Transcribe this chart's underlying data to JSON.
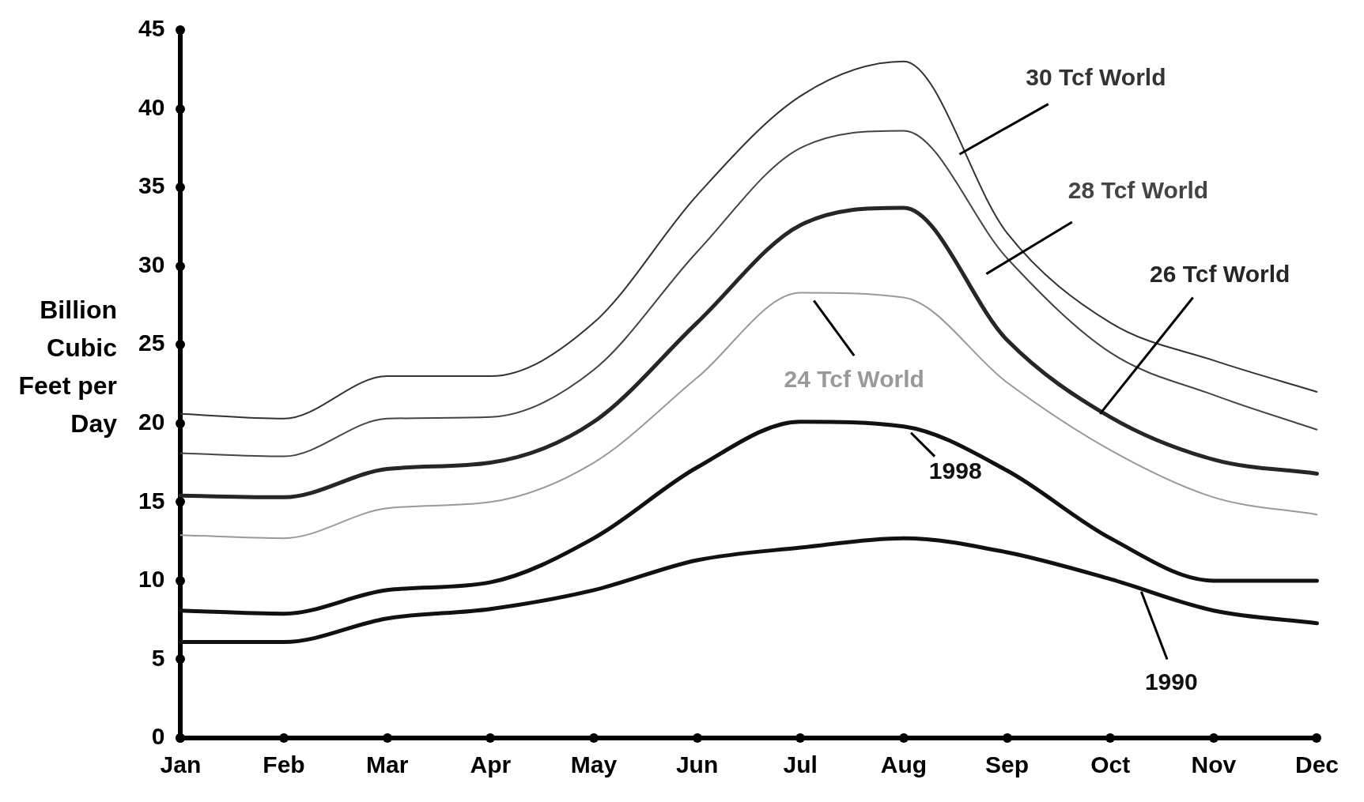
{
  "chart_data": {
    "type": "line",
    "ylabel": "Billion Cubic Feet per Day",
    "categories": [
      "Jan",
      "Feb",
      "Mar",
      "Apr",
      "May",
      "Jun",
      "Jul",
      "Aug",
      "Sep",
      "Oct",
      "Nov",
      "Dec"
    ],
    "series": [
      {
        "name": "30 Tcf World",
        "color": "#333333",
        "values": [
          20.6,
          20.3,
          23.0,
          23.0,
          26.4,
          34.5,
          40.8,
          43.0,
          32.1,
          26.4,
          24.0,
          22.0
        ]
      },
      {
        "name": "28 Tcf World",
        "color": "#444444",
        "values": [
          18.1,
          17.9,
          20.3,
          20.4,
          23.4,
          30.9,
          37.5,
          38.6,
          30.5,
          24.5,
          21.8,
          19.6
        ]
      },
      {
        "name": "26 Tcf World",
        "color": "#262626",
        "values": [
          15.4,
          15.3,
          17.1,
          17.5,
          20.1,
          26.4,
          32.6,
          33.7,
          25.3,
          20.4,
          17.7,
          16.8
        ]
      },
      {
        "name": "24 Tcf World",
        "color": "#999999",
        "values": [
          12.9,
          12.7,
          14.6,
          15.0,
          17.5,
          22.9,
          28.3,
          28.0,
          22.6,
          18.3,
          15.3,
          14.2
        ]
      },
      {
        "name": "1998",
        "color": "#111111",
        "values": [
          8.1,
          7.9,
          9.4,
          9.9,
          12.7,
          17.2,
          20.1,
          19.8,
          17.0,
          12.7,
          10.0,
          10.0
        ]
      },
      {
        "name": "1990",
        "color": "#111111",
        "values": [
          6.1,
          6.1,
          7.6,
          8.2,
          9.4,
          11.3,
          12.1,
          12.7,
          11.8,
          10.1,
          8.1,
          7.3
        ]
      }
    ],
    "ylim": [
      0,
      45
    ],
    "yticks": [
      0,
      5,
      10,
      15,
      20,
      25,
      30,
      35,
      40,
      45
    ],
    "grid": false,
    "legend": false,
    "marker": "none",
    "line_style": "solid"
  }
}
